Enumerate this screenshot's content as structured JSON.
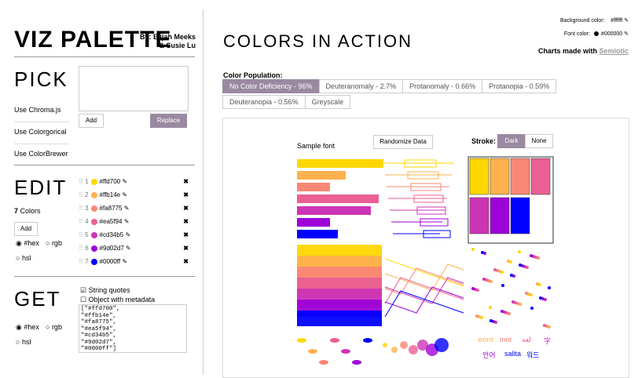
{
  "header": {
    "title": "VIZ PALETTE",
    "authors": [
      "By: Elijah Meeks",
      "& Susie Lu"
    ]
  },
  "pick": {
    "title": "PICK",
    "links": [
      "Use Chroma.js",
      "Use Colorgorical",
      "Use ColorBrewer"
    ],
    "add": "Add",
    "replace": "Replace"
  },
  "edit": {
    "title": "EDIT",
    "count": "7",
    "count_label": "Colors",
    "add": "Add",
    "formats": [
      "#hex",
      "rgb",
      "hsl"
    ],
    "colors": [
      {
        "index": "1",
        "hex": "#ffd700"
      },
      {
        "index": "2",
        "hex": "#ffb14e"
      },
      {
        "index": "3",
        "hex": "#fa8775"
      },
      {
        "index": "4",
        "hex": "#ea5f94"
      },
      {
        "index": "5",
        "hex": "#cd34b5"
      },
      {
        "index": "6",
        "hex": "#9d02d7"
      },
      {
        "index": "7",
        "hex": "#0000ff"
      }
    ]
  },
  "get": {
    "title": "GET",
    "options": [
      "String quotes",
      "Object with metadata"
    ],
    "formats": [
      "#hex",
      "rgb",
      "hsl"
    ],
    "output": [
      "[\"#ffd700\",",
      "\"#ffb14e\",",
      "\"#fa8775\",",
      "\"#ea5f94\",",
      "\"#cd34b5\",",
      "\"#9d02d7\",",
      "\"#0000ff\"]"
    ]
  },
  "main": {
    "title": "COLORS IN ACTION",
    "background_label": "Background color:",
    "background_value": "#ffffff",
    "font_label": "Font color:",
    "font_value": "#000000",
    "made_with": "Charts made with",
    "made_with_link": "Semiotic",
    "population_label": "Color Population:",
    "tabs": [
      "No Color Deficiency - 96%",
      "Deuteranomaly - 2.7%",
      "Protanomaly - 0.66%",
      "Protanopia - 0.59%",
      "Deuteranopia - 0.56%",
      "Greyscale"
    ],
    "sample_font": "Sample font",
    "randomize": "Randomize Data",
    "stroke_label": "Stroke:",
    "stroke_options": [
      "Dark",
      "None"
    ],
    "words": [
      "word",
      "mot",
      "لغة",
      "字",
      "언어",
      "salita",
      "워드"
    ]
  }
}
